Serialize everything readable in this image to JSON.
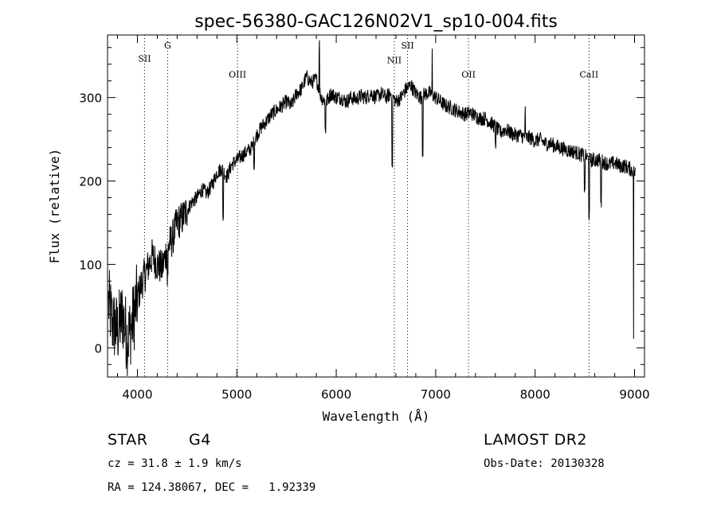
{
  "chart_data": {
    "type": "line",
    "title": "spec-56380-GAC126N02V1_sp10-004.fits",
    "xlabel": "Wavelength (Å)",
    "ylabel": "Flux (relative)",
    "xlim": [
      3700,
      9100
    ],
    "ylim": [
      -35,
      375
    ],
    "xticks": [
      4000,
      5000,
      6000,
      7000,
      8000,
      9000
    ],
    "yticks": [
      0,
      100,
      200,
      300
    ],
    "grid": false,
    "series": [
      {
        "x": [
          3700,
          3750,
          3800,
          3850,
          3900,
          3950,
          4000,
          4050,
          4100,
          4150,
          4200,
          4250,
          4300,
          4350,
          4400,
          4450,
          4500,
          4550,
          4600,
          4650,
          4700,
          4750,
          4800,
          4850,
          4900,
          4950,
          5000,
          5050,
          5100,
          5150,
          5200,
          5250,
          5300,
          5350,
          5400,
          5450,
          5500,
          5550,
          5600,
          5650,
          5700,
          5750,
          5800,
          5850,
          5900,
          5950,
          6000,
          6050,
          6100,
          6150,
          6200,
          6250,
          6300,
          6350,
          6400,
          6450,
          6500,
          6550,
          6600,
          6650,
          6700,
          6750,
          6800,
          6850,
          6900,
          6950,
          7000,
          7050,
          7100,
          7150,
          7200,
          7250,
          7300,
          7350,
          7400,
          7450,
          7500,
          7550,
          7600,
          7650,
          7700,
          7750,
          7800,
          7850,
          7900,
          7950,
          8000,
          8050,
          8100,
          8150,
          8200,
          8250,
          8300,
          8350,
          8400,
          8450,
          8500,
          8550,
          8600,
          8650,
          8700,
          8750,
          8800,
          8850,
          8900,
          8950,
          9000
        ],
        "y": [
          60,
          30,
          20,
          40,
          10,
          30,
          60,
          80,
          95,
          110,
          100,
          95,
          120,
          130,
          150,
          155,
          165,
          175,
          180,
          190,
          185,
          195,
          210,
          215,
          205,
          220,
          225,
          230,
          235,
          240,
          255,
          265,
          272,
          280,
          285,
          290,
          295,
          290,
          305,
          310,
          325,
          318,
          322,
          300,
          295,
          305,
          300,
          300,
          295,
          300,
          298,
          302,
          300,
          305,
          300,
          305,
          300,
          305,
          295,
          300,
          310,
          315,
          305,
          300,
          305,
          305,
          300,
          295,
          290,
          288,
          285,
          282,
          280,
          282,
          278,
          275,
          275,
          270,
          265,
          258,
          262,
          258,
          255,
          255,
          252,
          252,
          248,
          250,
          245,
          245,
          242,
          240,
          238,
          236,
          235,
          232,
          230,
          225,
          225,
          225,
          222,
          220,
          222,
          218,
          218,
          215,
          210
        ]
      }
    ],
    "annotations": [
      {
        "label": "SII",
        "x": 4072,
        "label_y": 343
      },
      {
        "label": "G",
        "x": 4304,
        "label_y": 359
      },
      {
        "label": "OIII",
        "x": 5007,
        "label_y": 324
      },
      {
        "label": "NII",
        "x": 6584,
        "label_y": 341
      },
      {
        "label": "SII",
        "x": 6717,
        "label_y": 359
      },
      {
        "label": "OII",
        "x": 7330,
        "label_y": 324
      },
      {
        "label": "CaII",
        "x": 8542,
        "label_y": 324
      }
    ]
  },
  "info": {
    "object_class": "STAR",
    "subclass": "G4",
    "survey": "LAMOST DR2",
    "redshift": "cz = 31.8 ± 1.9 km/s",
    "obs_date": "Obs-Date: 20130328",
    "coords": "RA = 124.38067, DEC =   1.92339"
  }
}
